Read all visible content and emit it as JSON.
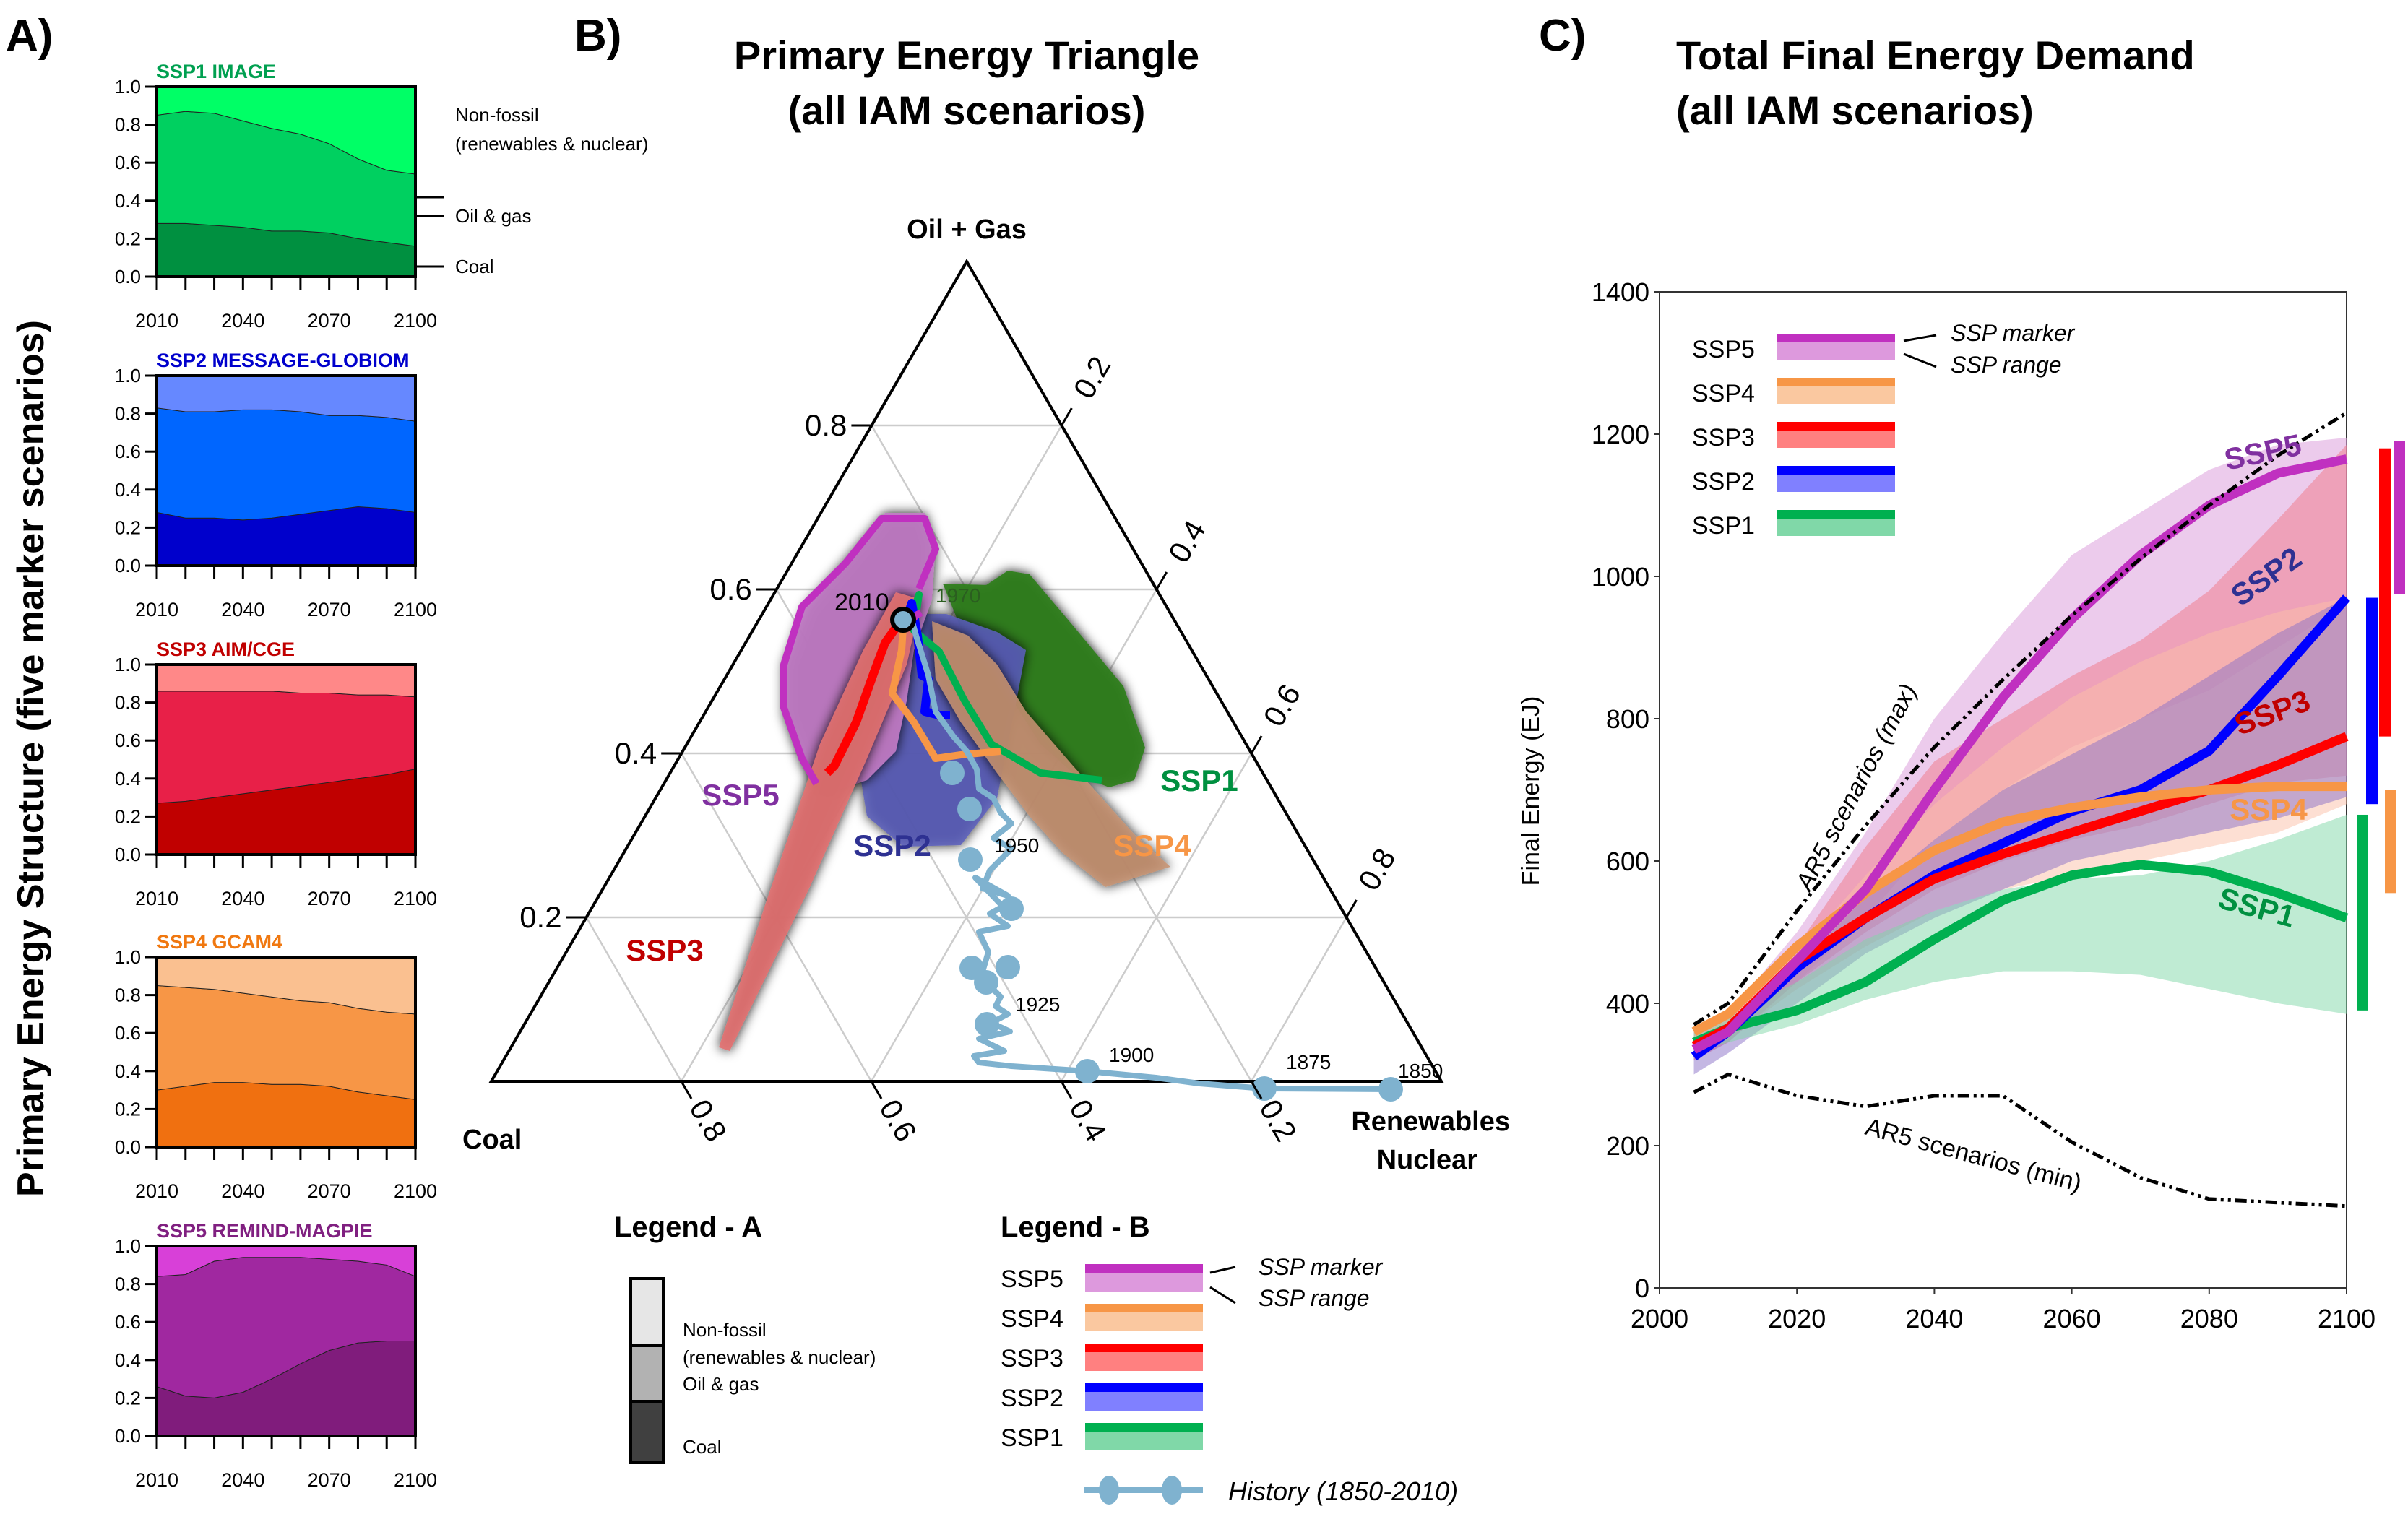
{
  "panel_labels": {
    "a": "A)",
    "b": "B)",
    "c": "C)"
  },
  "panel_a": {
    "ylabel": "Primary Energy Structure (five marker scenarios)",
    "yticks": [
      "0.0",
      "0.2",
      "0.4",
      "0.6",
      "0.8",
      "1.0"
    ],
    "xticks": [
      "2010",
      "2040",
      "2070",
      "2100"
    ],
    "side_labels": {
      "nonfossil_1": "Non-fossil",
      "nonfossil_2": "(renewables & nuclear)",
      "oil_gas": "Oil & gas",
      "coal": "Coal"
    }
  },
  "panel_b": {
    "title_1": "Primary Energy Triangle",
    "title_2": "(all IAM scenarios)",
    "vertex_top": "Oil + Gas",
    "vertex_left": "Coal",
    "vertex_right_1": "Renewables",
    "vertex_right_2": "Nuclear",
    "left_ticks": [
      "0.2",
      "0.4",
      "0.6",
      "0.8"
    ],
    "right_ticks": [
      "0.2",
      "0.4",
      "0.6",
      "0.8"
    ],
    "bottom_ticks": [
      "0.8",
      "0.6",
      "0.4",
      "0.2"
    ],
    "history_years": [
      "1850",
      "1875",
      "1900",
      "1925",
      "1950",
      "1970",
      "2010"
    ],
    "ssp_labels": [
      "SSP1",
      "SSP2",
      "SSP3",
      "SSP4",
      "SSP5"
    ]
  },
  "legend_a": {
    "title": "Legend - A",
    "items": [
      "Non-fossil",
      "(renewables & nuclear)",
      "Oil & gas",
      "Coal"
    ]
  },
  "legend_b": {
    "title": "Legend - B",
    "items": [
      "SSP5",
      "SSP4",
      "SSP3",
      "SSP2",
      "SSP1"
    ],
    "marker_label": "SSP marker",
    "range_label": "SSP range",
    "history_label": "History (1850-2010)"
  },
  "panel_c": {
    "title_1": "Total Final Energy Demand",
    "title_2": "(all IAM scenarios)",
    "legend_items": [
      "SSP5",
      "SSP4",
      "SSP3",
      "SSP2",
      "SSP1"
    ],
    "marker_label": "SSP marker",
    "range_label": "SSP range",
    "ar5_max_label": "AR5 scenarios (max)",
    "ar5_min_label": "AR5 scenarios (min)"
  },
  "colors": {
    "SSP1": "#00b050",
    "SSP2": "#0000ff",
    "SSP3": "#ff0000",
    "SSP4": "#f79646",
    "SSP5": "#c030c0",
    "SSP1_label": "#009040",
    "SSP2_label": "#2e3192",
    "SSP3_label": "#c00000",
    "SSP4_label": "#f79646",
    "SSP5_label": "#8030a0",
    "history": "#7fb2cf"
  },
  "chart_data": [
    {
      "type": "area",
      "title": "SSP1 IMAGE",
      "title_color": "#00a050",
      "x": [
        2010,
        2020,
        2030,
        2040,
        2050,
        2060,
        2070,
        2080,
        2090,
        2100
      ],
      "ylim": [
        0,
        1
      ],
      "series": [
        {
          "name": "Coal",
          "values": [
            0.28,
            0.28,
            0.27,
            0.26,
            0.24,
            0.24,
            0.23,
            0.2,
            0.18,
            0.16
          ],
          "color": "#009040"
        },
        {
          "name": "Oil & gas",
          "values": [
            0.57,
            0.59,
            0.59,
            0.56,
            0.54,
            0.51,
            0.47,
            0.42,
            0.38,
            0.38
          ],
          "color": "#00d060"
        },
        {
          "name": "Non-fossil",
          "values": [
            0.15,
            0.13,
            0.14,
            0.18,
            0.22,
            0.25,
            0.3,
            0.38,
            0.44,
            0.46
          ],
          "color": "#00ff66"
        }
      ]
    },
    {
      "type": "area",
      "title": "SSP2 MESSAGE-GLOBIOM",
      "title_color": "#0000cc",
      "x": [
        2010,
        2020,
        2030,
        2040,
        2050,
        2060,
        2070,
        2080,
        2090,
        2100
      ],
      "ylim": [
        0,
        1
      ],
      "series": [
        {
          "name": "Coal",
          "values": [
            0.28,
            0.25,
            0.25,
            0.24,
            0.25,
            0.27,
            0.29,
            0.31,
            0.3,
            0.28
          ],
          "color": "#0000cc"
        },
        {
          "name": "Oil & gas",
          "values": [
            0.55,
            0.56,
            0.56,
            0.58,
            0.57,
            0.54,
            0.5,
            0.48,
            0.48,
            0.48
          ],
          "color": "#0066ff"
        },
        {
          "name": "Non-fossil",
          "values": [
            0.17,
            0.19,
            0.19,
            0.18,
            0.18,
            0.19,
            0.21,
            0.21,
            0.22,
            0.24
          ],
          "color": "#6688ff"
        }
      ]
    },
    {
      "type": "area",
      "title": "SSP3 AIM/CGE",
      "title_color": "#c00000",
      "x": [
        2010,
        2020,
        2030,
        2040,
        2050,
        2060,
        2070,
        2080,
        2090,
        2100
      ],
      "ylim": [
        0,
        1
      ],
      "series": [
        {
          "name": "Coal",
          "values": [
            0.27,
            0.28,
            0.3,
            0.32,
            0.34,
            0.36,
            0.38,
            0.4,
            0.42,
            0.45
          ],
          "color": "#c00000"
        },
        {
          "name": "Oil & gas",
          "values": [
            0.59,
            0.58,
            0.56,
            0.54,
            0.52,
            0.49,
            0.47,
            0.44,
            0.42,
            0.38
          ],
          "color": "#e82048"
        },
        {
          "name": "Non-fossil",
          "values": [
            0.14,
            0.14,
            0.14,
            0.14,
            0.14,
            0.15,
            0.15,
            0.16,
            0.16,
            0.17
          ],
          "color": "#ff8888"
        }
      ]
    },
    {
      "type": "area",
      "title": "SSP4 GCAM4",
      "title_color": "#f07810",
      "x": [
        2010,
        2020,
        2030,
        2040,
        2050,
        2060,
        2070,
        2080,
        2090,
        2100
      ],
      "ylim": [
        0,
        1
      ],
      "series": [
        {
          "name": "Coal",
          "values": [
            0.3,
            0.32,
            0.34,
            0.34,
            0.33,
            0.33,
            0.32,
            0.29,
            0.27,
            0.25
          ],
          "color": "#f07010"
        },
        {
          "name": "Oil & gas",
          "values": [
            0.55,
            0.52,
            0.49,
            0.47,
            0.46,
            0.44,
            0.44,
            0.44,
            0.44,
            0.45
          ],
          "color": "#f79646"
        },
        {
          "name": "Non-fossil",
          "values": [
            0.15,
            0.16,
            0.17,
            0.19,
            0.21,
            0.23,
            0.24,
            0.27,
            0.29,
            0.3
          ],
          "color": "#fac090"
        }
      ]
    },
    {
      "type": "area",
      "title": "SSP5 REMIND-MAGPIE",
      "title_color": "#802080",
      "x": [
        2010,
        2020,
        2030,
        2040,
        2050,
        2060,
        2070,
        2080,
        2090,
        2100
      ],
      "ylim": [
        0,
        1
      ],
      "series": [
        {
          "name": "Coal",
          "values": [
            0.26,
            0.21,
            0.2,
            0.23,
            0.3,
            0.38,
            0.45,
            0.49,
            0.5,
            0.5
          ],
          "color": "#801c7c"
        },
        {
          "name": "Oil & gas",
          "values": [
            0.58,
            0.64,
            0.72,
            0.71,
            0.64,
            0.56,
            0.48,
            0.43,
            0.4,
            0.34
          ],
          "color": "#a028a0"
        },
        {
          "name": "Non-fossil",
          "values": [
            0.16,
            0.15,
            0.08,
            0.06,
            0.06,
            0.06,
            0.07,
            0.08,
            0.1,
            0.16
          ],
          "color": "#d840d8"
        }
      ]
    },
    {
      "type": "scatter",
      "title": "Primary Energy Triangle (all IAM scenarios)",
      "axes": [
        "Coal",
        "Oil + Gas",
        "Renewables / Nuclear"
      ],
      "grid": true,
      "history": {
        "label": "History (1850-2010)",
        "points": [
          {
            "year": 1850,
            "coal": 0.07,
            "oilgas": 0.0,
            "renew": 0.93
          },
          {
            "year": 1875,
            "coal": 0.22,
            "oilgas": 0.0,
            "renew": 0.78
          },
          {
            "year": 1900,
            "coal": 0.53,
            "oilgas": 0.03,
            "renew": 0.44
          },
          {
            "year": 1925,
            "coal": 0.53,
            "oilgas": 0.13,
            "renew": 0.34
          },
          {
            "year": 1950,
            "coal": 0.48,
            "oilgas": 0.27,
            "renew": 0.25
          },
          {
            "year": 1970,
            "coal": 0.3,
            "oilgas": 0.58,
            "renew": 0.12
          },
          {
            "year": 2010,
            "coal": 0.3,
            "oilgas": 0.57,
            "renew": 0.13
          }
        ]
      },
      "ssp_marker_endpoints_2100": {
        "SSP1": {
          "coal": 0.13,
          "oilgas": 0.4,
          "renew": 0.47
        },
        "SSP2": {
          "coal": 0.3,
          "oilgas": 0.5,
          "renew": 0.2
        },
        "SSP3": {
          "coal": 0.52,
          "oilgas": 0.39,
          "renew": 0.09
        },
        "SSP4": {
          "coal": 0.27,
          "oilgas": 0.46,
          "renew": 0.27
        },
        "SSP5": {
          "coal": 0.52,
          "oilgas": 0.34,
          "renew": 0.14
        }
      }
    },
    {
      "type": "line",
      "title": "Total Final Energy Demand (all IAM scenarios)",
      "xlabel": "",
      "ylabel": "Final Energy (EJ)",
      "xlim": [
        2000,
        2100
      ],
      "ylim": [
        0,
        1400
      ],
      "xticks": [
        2000,
        2020,
        2040,
        2060,
        2080,
        2100
      ],
      "yticks": [
        0,
        200,
        400,
        600,
        800,
        1000,
        1200,
        1400
      ],
      "x": [
        2005,
        2010,
        2020,
        2030,
        2040,
        2050,
        2060,
        2070,
        2080,
        2090,
        2100
      ],
      "series": [
        {
          "name": "SSP1",
          "values": [
            345,
            365,
            390,
            430,
            490,
            545,
            580,
            595,
            585,
            555,
            520
          ]
        },
        {
          "name": "SSP2",
          "values": [
            325,
            360,
            450,
            520,
            580,
            625,
            670,
            700,
            755,
            860,
            970
          ]
        },
        {
          "name": "SSP3",
          "values": [
            340,
            365,
            460,
            520,
            575,
            610,
            640,
            670,
            700,
            735,
            775
          ]
        },
        {
          "name": "SSP4",
          "values": [
            360,
            385,
            480,
            555,
            615,
            655,
            675,
            690,
            700,
            705,
            705
          ]
        },
        {
          "name": "SSP5",
          "values": [
            335,
            360,
            460,
            560,
            700,
            830,
            940,
            1030,
            1100,
            1145,
            1165
          ]
        },
        {
          "name": "AR5 scenarios (max)",
          "values": [
            370,
            400,
            530,
            650,
            760,
            855,
            945,
            1025,
            1100,
            1170,
            1230
          ]
        },
        {
          "name": "AR5 scenarios (min)",
          "values": [
            275,
            300,
            270,
            255,
            270,
            270,
            205,
            155,
            125,
            120,
            115
          ]
        }
      ],
      "ranges": [
        {
          "name": "SSP5",
          "low": [
            320,
            345,
            430,
            520,
            630,
            700,
            760,
            800,
            840,
            900,
            960
          ],
          "high": [
            360,
            385,
            500,
            640,
            800,
            920,
            1030,
            1090,
            1150,
            1185,
            1195
          ]
        },
        {
          "name": "SSP3",
          "low": [
            320,
            345,
            430,
            500,
            560,
            600,
            630,
            650,
            680,
            710,
            720
          ],
          "high": [
            360,
            385,
            480,
            620,
            740,
            800,
            860,
            910,
            980,
            1080,
            1185
          ]
        },
        {
          "name": "SSP4",
          "low": [
            330,
            350,
            420,
            480,
            530,
            560,
            580,
            600,
            620,
            640,
            680
          ],
          "high": [
            365,
            390,
            470,
            580,
            680,
            760,
            830,
            880,
            920,
            950,
            970
          ]
        },
        {
          "name": "SSP2",
          "low": [
            300,
            330,
            400,
            470,
            520,
            560,
            600,
            620,
            640,
            660,
            690
          ],
          "high": [
            345,
            370,
            450,
            550,
            630,
            700,
            750,
            800,
            860,
            920,
            970
          ]
        },
        {
          "name": "SSP1",
          "low": [
            330,
            345,
            370,
            405,
            430,
            445,
            445,
            440,
            420,
            400,
            385
          ],
          "high": [
            360,
            380,
            430,
            490,
            530,
            560,
            575,
            580,
            600,
            630,
            665
          ]
        }
      ],
      "side_bars_2100": [
        {
          "name": "SSP1",
          "low": 390,
          "high": 665
        },
        {
          "name": "SSP2",
          "low": 680,
          "high": 970
        },
        {
          "name": "SSP3",
          "low": 775,
          "high": 1180
        },
        {
          "name": "SSP4",
          "low": 555,
          "high": 700
        },
        {
          "name": "SSP5",
          "low": 975,
          "high": 1190
        }
      ]
    }
  ]
}
